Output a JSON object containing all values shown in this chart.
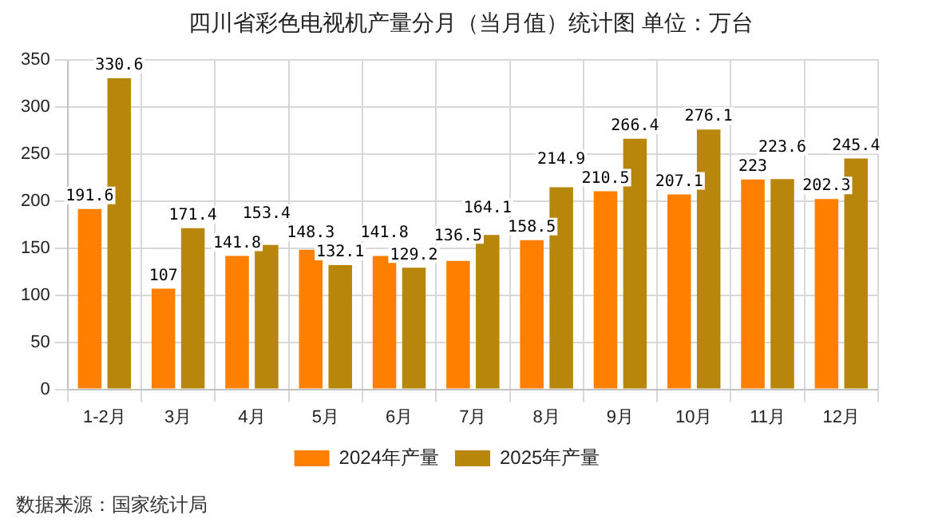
{
  "chart_data": {
    "type": "bar",
    "title": "四川省彩色电视机产量分月（当月值）统计图  单位：万台",
    "categories": [
      "1-2月",
      "3月",
      "4月",
      "5月",
      "6月",
      "7月",
      "8月",
      "9月",
      "10月",
      "11月",
      "12月"
    ],
    "series": [
      {
        "name": "2024年产量",
        "color": "#ff8000",
        "values": [
          191.6,
          107,
          141.8,
          148.3,
          141.8,
          136.5,
          158.5,
          210.5,
          207.1,
          223,
          202.3
        ]
      },
      {
        "name": "2025年产量",
        "color": "#b8860b",
        "values": [
          330.6,
          171.4,
          153.4,
          132.1,
          129.2,
          164.1,
          214.9,
          266.4,
          276.1,
          223.6,
          245.4
        ]
      }
    ],
    "ylim": [
      0,
      350
    ],
    "yticks": [
      0,
      50,
      100,
      150,
      200,
      250,
      300,
      350
    ],
    "grid": true,
    "legend": "bottom",
    "data_labels": true,
    "annotations": [
      "数据来源：国家统计局"
    ]
  }
}
